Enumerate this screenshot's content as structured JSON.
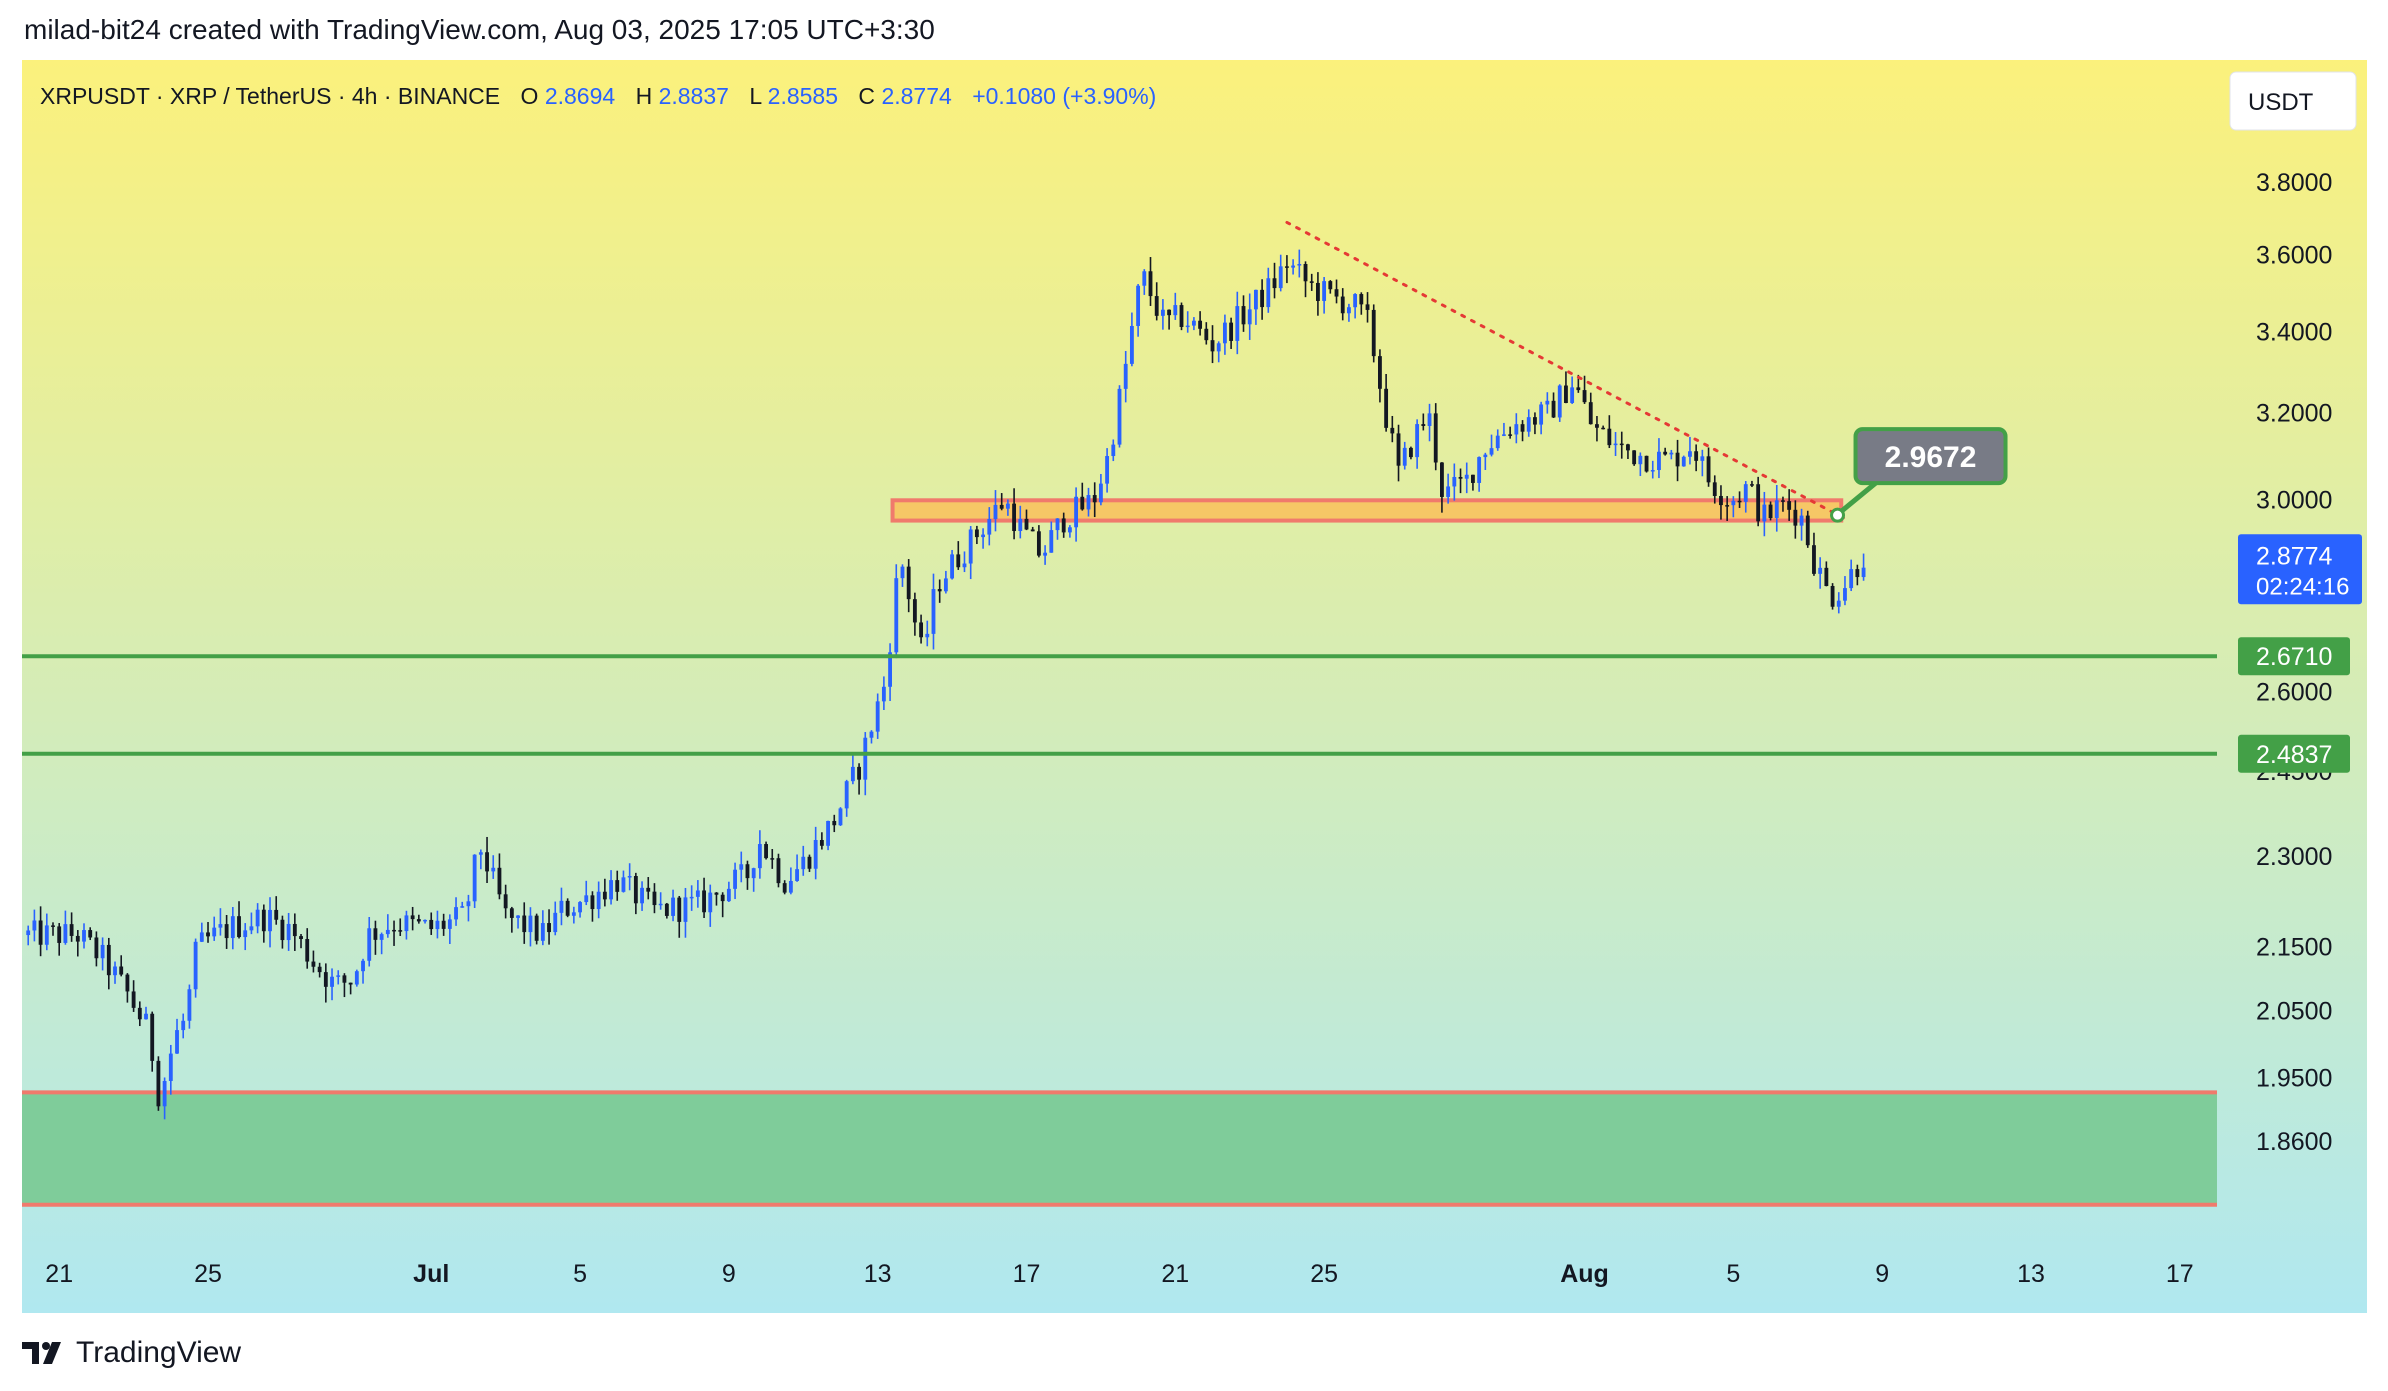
{
  "header": {
    "attribution": "milad-bit24 created with TradingView.com, Aug 03, 2025 17:05 UTC+3:30"
  },
  "legend": {
    "symbol_text": "XRPUSDT · XRP / TetherUS · 4h · BINANCE",
    "o_label": "O",
    "o_value": "2.8694",
    "h_label": "H",
    "h_value": "2.8837",
    "l_label": "L",
    "l_value": "2.8585",
    "c_label": "C",
    "c_value": "2.8774",
    "change": "+0.1080 (+3.90%)"
  },
  "currency_button": "USDT",
  "footer": {
    "brand": "TradingView"
  },
  "colors": {
    "bg_top": "#fbf17c",
    "bg_bottom": "#b0e8f0",
    "candle_up": "#2962ff",
    "candle_down": "#131722",
    "support_line": "#43a047",
    "resistance_zone_fill": "#f9c05a",
    "resistance_zone_border": "#f07a6c",
    "demand_zone_fill": "#7fcc9a",
    "trendline": "#e53935",
    "price_label_bg": "#2962ff",
    "callout_bg": "#787b86"
  },
  "chart_data": {
    "type": "candlestick",
    "title": "XRPUSDT · XRP / TetherUS · 4h · BINANCE",
    "ylabel": "USDT",
    "y_scale": "log",
    "ylim": [
      1.78,
      3.95
    ],
    "x_range_days": [
      -11,
      48
    ],
    "x_ticks": [
      {
        "label": "21",
        "day": -10
      },
      {
        "label": "25",
        "day": -6
      },
      {
        "label": "Jul",
        "day": 0
      },
      {
        "label": "5",
        "day": 4
      },
      {
        "label": "9",
        "day": 8
      },
      {
        "label": "13",
        "day": 12
      },
      {
        "label": "17",
        "day": 16
      },
      {
        "label": "21",
        "day": 20
      },
      {
        "label": "25",
        "day": 24
      },
      {
        "label": "Aug",
        "day": 31
      },
      {
        "label": "5",
        "day": 35
      },
      {
        "label": "9",
        "day": 39
      },
      {
        "label": "13",
        "day": 43
      },
      {
        "label": "17",
        "day": 47
      }
    ],
    "y_ticks": [
      "3.8000",
      "3.6000",
      "3.4000",
      "3.2000",
      "3.0000",
      "2.6000",
      "2.4500",
      "2.3000",
      "2.1500",
      "2.0500",
      "1.9500",
      "1.8600"
    ],
    "close_path": [
      [
        -11,
        2.17
      ],
      [
        -9.5,
        2.17
      ],
      [
        -8.8,
        2.13
      ],
      [
        -8.2,
        2.08
      ],
      [
        -7.6,
        2.02
      ],
      [
        -7.3,
        1.92
      ],
      [
        -6.9,
        2.01
      ],
      [
        -6.6,
        2.04
      ],
      [
        -6.3,
        2.15
      ],
      [
        -5.5,
        2.18
      ],
      [
        -4.5,
        2.2
      ],
      [
        -3.8,
        2.18
      ],
      [
        -3.2,
        2.13
      ],
      [
        -2.6,
        2.09
      ],
      [
        -2.1,
        2.1
      ],
      [
        -1.7,
        2.17
      ],
      [
        -1,
        2.19
      ],
      [
        0,
        2.18
      ],
      [
        0.9,
        2.2
      ],
      [
        1.3,
        2.32
      ],
      [
        2,
        2.2
      ],
      [
        3,
        2.17
      ],
      [
        3.5,
        2.21
      ],
      [
        4.2,
        2.23
      ],
      [
        5,
        2.26
      ],
      [
        6,
        2.21
      ],
      [
        7.2,
        2.22
      ],
      [
        8.5,
        2.27
      ],
      [
        8.8,
        2.33
      ],
      [
        9.5,
        2.26
      ],
      [
        10,
        2.29
      ],
      [
        10.8,
        2.36
      ],
      [
        11.5,
        2.46
      ],
      [
        12.2,
        2.62
      ],
      [
        12.6,
        2.88
      ],
      [
        13.2,
        2.67
      ],
      [
        13.6,
        2.82
      ],
      [
        14.6,
        2.92
      ],
      [
        15.4,
        3.0
      ],
      [
        15.9,
        2.93
      ],
      [
        16.4,
        2.88
      ],
      [
        17,
        2.96
      ],
      [
        17.8,
        3.0
      ],
      [
        18.2,
        3.1
      ],
      [
        18.6,
        3.28
      ],
      [
        19.1,
        3.55
      ],
      [
        19.7,
        3.42
      ],
      [
        20.2,
        3.44
      ],
      [
        21,
        3.37
      ],
      [
        22,
        3.46
      ],
      [
        22.6,
        3.52
      ],
      [
        23,
        3.58
      ],
      [
        23.6,
        3.52
      ],
      [
        24.2,
        3.49
      ],
      [
        24.8,
        3.47
      ],
      [
        25.2,
        3.42
      ],
      [
        25.6,
        3.22
      ],
      [
        26,
        3.06
      ],
      [
        26.4,
        3.14
      ],
      [
        26.8,
        3.2
      ],
      [
        27.2,
        3.01
      ],
      [
        27.8,
        3.04
      ],
      [
        28.3,
        3.12
      ],
      [
        29,
        3.17
      ],
      [
        30,
        3.2
      ],
      [
        30.7,
        3.28
      ],
      [
        31.2,
        3.17
      ],
      [
        31.9,
        3.12
      ],
      [
        32.6,
        3.1
      ],
      [
        33.3,
        3.09
      ],
      [
        33.9,
        3.13
      ],
      [
        34.3,
        3.05
      ],
      [
        34.9,
        3.0
      ],
      [
        35.4,
        3.03
      ],
      [
        35.8,
        2.96
      ],
      [
        36.3,
        2.99
      ],
      [
        36.8,
        2.97
      ],
      [
        37.2,
        2.86
      ],
      [
        37.6,
        2.79
      ],
      [
        38,
        2.82
      ],
      [
        38.5,
        2.88
      ]
    ],
    "last_price": "2.8774",
    "countdown": "02:24:16",
    "support_levels": [
      "2.6710",
      "2.4837"
    ],
    "resistance_zone": [
      2.955,
      3.0
    ],
    "demand_zone": [
      1.775,
      1.93
    ],
    "trendline_label": "2.9672",
    "trendline_points": [
      [
        23,
        3.69
      ],
      [
        37.8,
        2.967
      ]
    ],
    "grid": false,
    "legend_position": "top-left"
  }
}
